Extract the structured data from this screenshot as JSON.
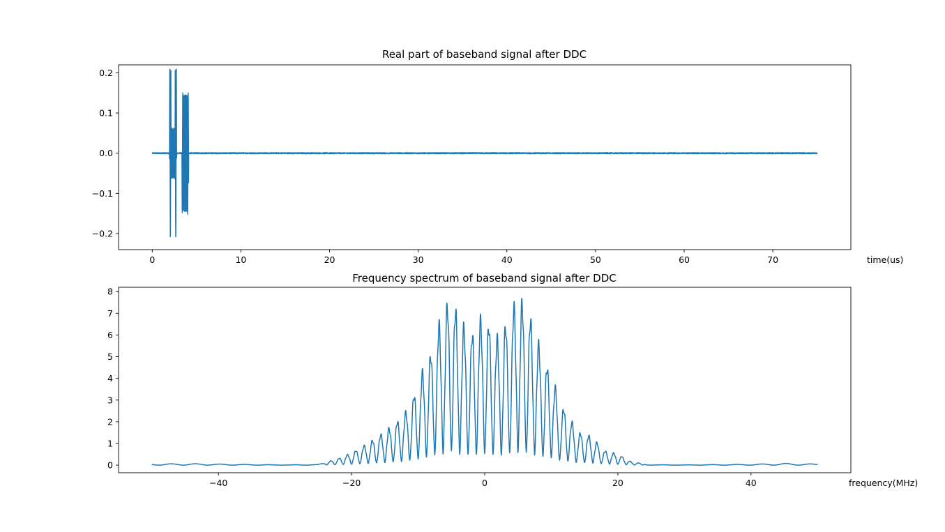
{
  "chart_data": [
    {
      "type": "line",
      "title": "Real part of baseband signal after DDC",
      "xlabel": "time(us)",
      "ylabel": "",
      "xlim": [
        -3.8,
        78.8
      ],
      "ylim": [
        -0.24,
        0.22
      ],
      "x_ticks": [
        0,
        10,
        20,
        30,
        40,
        50,
        60,
        70
      ],
      "x_tick_labels": [
        "0",
        "10",
        "20",
        "30",
        "40",
        "50",
        "60",
        "70"
      ],
      "y_ticks": [
        -0.2,
        -0.1,
        0.0,
        0.1,
        0.2
      ],
      "y_tick_labels": [
        "−0.2",
        "−0.1",
        "0.0",
        "0.1",
        "0.2"
      ],
      "grid": false,
      "color": "#1f77b4",
      "series": [
        {
          "x_range": [
            0,
            75
          ],
          "baseline": 0.0,
          "noise_amplitude": 0.0015,
          "pulses": [
            {
              "start": 1.95,
              "end": 2.75,
              "amplitude": 0.21,
              "inner_amplitude": 0.065
            },
            {
              "start": 3.35,
              "end": 4.1,
              "amplitude": 0.155,
              "inner_amplitude": 0.145
            }
          ]
        }
      ]
    },
    {
      "type": "line",
      "title": "Frequency spectrum of baseband signal after DDC",
      "xlabel": "frequency(MHz)",
      "ylabel": "",
      "xlim": [
        -55,
        55
      ],
      "ylim": [
        -0.35,
        8.2
      ],
      "x_ticks": [
        -40,
        -20,
        0,
        20,
        40
      ],
      "x_tick_labels": [
        "−40",
        "−20",
        "0",
        "20",
        "40"
      ],
      "y_ticks": [
        0,
        1,
        2,
        3,
        4,
        5,
        6,
        7,
        8
      ],
      "y_tick_labels": [
        "0",
        "1",
        "2",
        "3",
        "4",
        "5",
        "6",
        "7",
        "8"
      ],
      "grid": false,
      "color": "#1f77b4",
      "series": [
        {
          "x_range": [
            -50,
            50
          ],
          "oscillation_period": 1.25,
          "envelope": [
            [
              -50,
              0.05
            ],
            [
              -45,
              0.07
            ],
            [
              -40,
              0.05
            ],
            [
              -30,
              0.01
            ],
            [
              -25,
              0.03
            ],
            [
              -22,
              0.3
            ],
            [
              -20,
              0.55
            ],
            [
              -18,
              0.9
            ],
            [
              -16,
              1.3
            ],
            [
              -14,
              1.75
            ],
            [
              -12,
              2.3
            ],
            [
              -11,
              3.0
            ],
            [
              -10,
              3.5
            ],
            [
              -9,
              4.6
            ],
            [
              -8,
              5.1
            ],
            [
              -7,
              6.3
            ],
            [
              -6,
              7.0
            ],
            [
              -5,
              7.75
            ],
            [
              -4,
              6.7
            ],
            [
              -3,
              6.2
            ],
            [
              -2,
              5.9
            ],
            [
              -1,
              6.5
            ],
            [
              0,
              6.7
            ],
            [
              1,
              6.2
            ],
            [
              2,
              5.7
            ],
            [
              3,
              6.3
            ],
            [
              4,
              6.9
            ],
            [
              5,
              7.7
            ],
            [
              6,
              7.2
            ],
            [
              7,
              6.6
            ],
            [
              8,
              5.6
            ],
            [
              9,
              4.6
            ],
            [
              10,
              4.3
            ],
            [
              11,
              3.0
            ],
            [
              12,
              2.5
            ],
            [
              13,
              2.0
            ],
            [
              14,
              1.5
            ],
            [
              16,
              1.3
            ],
            [
              18,
              0.65
            ],
            [
              20,
              0.5
            ],
            [
              22,
              0.15
            ],
            [
              25,
              0.02
            ],
            [
              30,
              0.01
            ],
            [
              40,
              0.04
            ],
            [
              45,
              0.08
            ],
            [
              50,
              0.05
            ]
          ]
        }
      ]
    }
  ]
}
